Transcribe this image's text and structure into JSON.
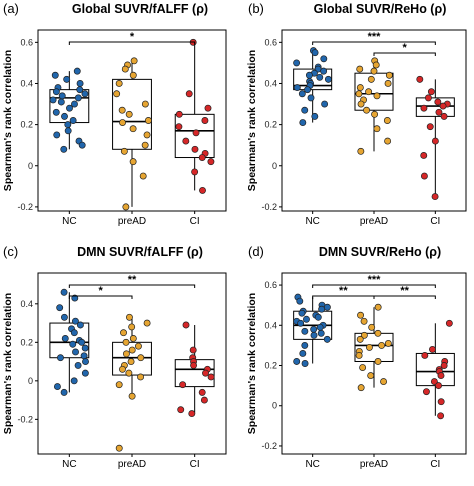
{
  "figure": {
    "panels_order": [
      "a",
      "b",
      "c",
      "d"
    ]
  },
  "chart_data": [
    {
      "id": "a",
      "type": "scatter",
      "panel_label": "(a)",
      "title": "Global SUVR/fALFF (ρ)",
      "ylabel": "Spearman's rank correlation",
      "categories": [
        "NC",
        "preAD",
        "CI"
      ],
      "ylim": [
        -0.22,
        0.66
      ],
      "yticks": [
        -0.2,
        0.0,
        0.2,
        0.4,
        0.6
      ],
      "ytick_labels": [
        "-0.2",
        "0",
        "0.2",
        "0.4",
        "0.6"
      ],
      "colors": [
        "#2166ac",
        "#e6a532",
        "#d62728"
      ],
      "boxes": [
        {
          "min": 0.08,
          "q1": 0.21,
          "median": 0.33,
          "q3": 0.37,
          "max": 0.46
        },
        {
          "min": -0.2,
          "q1": 0.08,
          "median": 0.215,
          "q3": 0.42,
          "max": 0.51
        },
        {
          "min": -0.12,
          "q1": 0.04,
          "median": 0.17,
          "q3": 0.25,
          "max": 0.6
        }
      ],
      "points": [
        [
          0.46,
          0.44,
          0.42,
          0.4,
          0.38,
          0.37,
          0.36,
          0.35,
          0.34,
          0.33,
          0.32,
          0.31,
          0.3,
          0.28,
          0.26,
          0.24,
          0.22,
          0.2,
          0.17,
          0.15,
          0.12,
          0.1,
          0.08
        ],
        [
          0.51,
          0.49,
          0.47,
          0.44,
          0.4,
          0.35,
          0.3,
          0.27,
          0.25,
          0.22,
          0.21,
          0.18,
          0.15,
          0.1,
          0.07,
          0.02,
          -0.05,
          -0.2
        ],
        [
          0.6,
          0.35,
          0.28,
          0.25,
          0.22,
          0.19,
          0.16,
          0.12,
          0.08,
          0.06,
          0.04,
          0.02,
          -0.03,
          -0.12
        ]
      ],
      "significance": [
        {
          "from": 0,
          "to": 2,
          "level": 0,
          "label": "*"
        }
      ]
    },
    {
      "id": "b",
      "type": "scatter",
      "panel_label": "(b)",
      "title": "Global SUVR/ReHo (ρ)",
      "ylabel": "Spearman's rank correlation",
      "categories": [
        "NC",
        "preAD",
        "CI"
      ],
      "ylim": [
        -0.22,
        0.66
      ],
      "yticks": [
        -0.2,
        0.0,
        0.2,
        0.4,
        0.6
      ],
      "ytick_labels": [
        "-0.2",
        "0",
        "0.2",
        "0.4",
        "0.6"
      ],
      "colors": [
        "#2166ac",
        "#e6a532",
        "#d62728"
      ],
      "boxes": [
        {
          "min": 0.21,
          "q1": 0.37,
          "median": 0.39,
          "q3": 0.47,
          "max": 0.56
        },
        {
          "min": 0.07,
          "q1": 0.27,
          "median": 0.35,
          "q3": 0.45,
          "max": 0.51
        },
        {
          "min": -0.15,
          "q1": 0.24,
          "median": 0.29,
          "q3": 0.33,
          "max": 0.42
        }
      ],
      "points": [
        [
          0.56,
          0.55,
          0.52,
          0.5,
          0.48,
          0.47,
          0.46,
          0.45,
          0.44,
          0.43,
          0.42,
          0.41,
          0.4,
          0.39,
          0.38,
          0.37,
          0.35,
          0.33,
          0.3,
          0.27,
          0.24,
          0.21
        ],
        [
          0.51,
          0.49,
          0.47,
          0.46,
          0.44,
          0.42,
          0.4,
          0.38,
          0.36,
          0.35,
          0.34,
          0.32,
          0.3,
          0.27,
          0.25,
          0.22,
          0.18,
          0.12,
          0.07
        ],
        [
          0.42,
          0.36,
          0.33,
          0.31,
          0.3,
          0.29,
          0.28,
          0.26,
          0.24,
          0.19,
          0.12,
          0.05,
          -0.05,
          -0.15
        ]
      ],
      "significance": [
        {
          "from": 0,
          "to": 2,
          "level": 1,
          "label": "***"
        },
        {
          "from": 1,
          "to": 2,
          "level": 0,
          "label": "*"
        }
      ]
    },
    {
      "id": "c",
      "type": "scatter",
      "panel_label": "(c)",
      "title": "DMN SUVR/fALFF (ρ)",
      "ylabel": "Spearman's rank correlation",
      "categories": [
        "NC",
        "preAD",
        "CI"
      ],
      "ylim": [
        -0.38,
        0.56
      ],
      "yticks": [
        -0.2,
        0.0,
        0.2,
        0.4
      ],
      "ytick_labels": [
        "-0.2",
        "0",
        "0.2",
        "0.4"
      ],
      "colors": [
        "#2166ac",
        "#e6a532",
        "#d62728"
      ],
      "boxes": [
        {
          "min": -0.06,
          "q1": 0.12,
          "median": 0.2,
          "q3": 0.3,
          "max": 0.46
        },
        {
          "min": -0.08,
          "q1": 0.03,
          "median": 0.12,
          "q3": 0.2,
          "max": 0.33
        },
        {
          "min": -0.17,
          "q1": -0.03,
          "median": 0.06,
          "q3": 0.11,
          "max": 0.29
        }
      ],
      "points": [
        [
          0.46,
          0.43,
          0.38,
          0.33,
          0.31,
          0.29,
          0.27,
          0.25,
          0.22,
          0.21,
          0.2,
          0.19,
          0.17,
          0.15,
          0.13,
          0.12,
          0.1,
          0.08,
          0.04,
          0.0,
          -0.03,
          -0.06
        ],
        [
          0.33,
          0.3,
          0.28,
          0.25,
          0.22,
          0.2,
          0.18,
          0.16,
          0.14,
          0.12,
          0.1,
          0.08,
          0.06,
          0.04,
          0.02,
          -0.02,
          -0.08,
          -0.35
        ],
        [
          0.29,
          0.16,
          0.12,
          0.1,
          0.08,
          0.06,
          0.04,
          0.02,
          -0.02,
          -0.06,
          -0.1,
          -0.15,
          -0.17
        ]
      ],
      "significance": [
        {
          "from": 0,
          "to": 1,
          "level": 0,
          "label": "*"
        },
        {
          "from": 0,
          "to": 2,
          "level": 1,
          "label": "**"
        }
      ]
    },
    {
      "id": "d",
      "type": "scatter",
      "panel_label": "(d)",
      "title": "DMN SUVR/ReHo (ρ)",
      "ylabel": "Spearman's rank correlation",
      "categories": [
        "NC",
        "preAD",
        "CI"
      ],
      "ylim": [
        -0.24,
        0.66
      ],
      "yticks": [
        -0.2,
        0.0,
        0.2,
        0.4,
        0.6
      ],
      "ytick_labels": [
        "-0.2",
        "0",
        "0.2",
        "0.4",
        "0.6"
      ],
      "colors": [
        "#2166ac",
        "#e6a532",
        "#d62728"
      ],
      "boxes": [
        {
          "min": 0.21,
          "q1": 0.33,
          "median": 0.4,
          "q3": 0.47,
          "max": 0.54
        },
        {
          "min": 0.09,
          "q1": 0.22,
          "median": 0.3,
          "q3": 0.36,
          "max": 0.49
        },
        {
          "min": -0.05,
          "q1": 0.1,
          "median": 0.17,
          "q3": 0.26,
          "max": 0.41
        }
      ],
      "points": [
        [
          0.54,
          0.52,
          0.5,
          0.49,
          0.48,
          0.47,
          0.46,
          0.45,
          0.44,
          0.43,
          0.42,
          0.41,
          0.4,
          0.39,
          0.38,
          0.37,
          0.36,
          0.35,
          0.33,
          0.3,
          0.26,
          0.22,
          0.21
        ],
        [
          0.49,
          0.45,
          0.42,
          0.39,
          0.36,
          0.35,
          0.33,
          0.31,
          0.3,
          0.29,
          0.27,
          0.25,
          0.22,
          0.19,
          0.15,
          0.12,
          0.09
        ],
        [
          0.41,
          0.28,
          0.25,
          0.22,
          0.2,
          0.18,
          0.17,
          0.15,
          0.12,
          0.1,
          0.07,
          0.02,
          -0.05
        ]
      ],
      "significance": [
        {
          "from": 0,
          "to": 2,
          "level": 1,
          "label": "***"
        },
        {
          "from": 0,
          "to": 1,
          "level": 0,
          "label": "**"
        },
        {
          "from": 1,
          "to": 2,
          "level": 0,
          "label": "**"
        }
      ]
    }
  ]
}
